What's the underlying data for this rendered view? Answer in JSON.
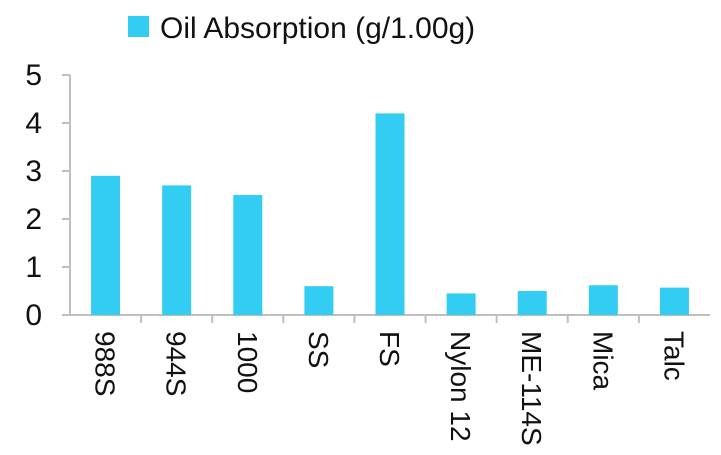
{
  "chart_data": {
    "type": "bar",
    "categories": [
      "988S",
      "944S",
      "1000",
      "SS",
      "FS",
      "Nylon 12",
      "ME-114S",
      "Mica",
      "Talc"
    ],
    "series": [
      {
        "name": "Oil Absorption (g/1.00g)",
        "values": [
          2.9,
          2.7,
          2.5,
          0.6,
          4.2,
          0.45,
          0.5,
          0.62,
          0.57
        ],
        "color": "#33ccf2"
      }
    ],
    "ylim": [
      0,
      5
    ],
    "yticks": [
      "0",
      "1",
      "2",
      "3",
      "4",
      "5"
    ],
    "grid": false,
    "legend_position": "top"
  }
}
